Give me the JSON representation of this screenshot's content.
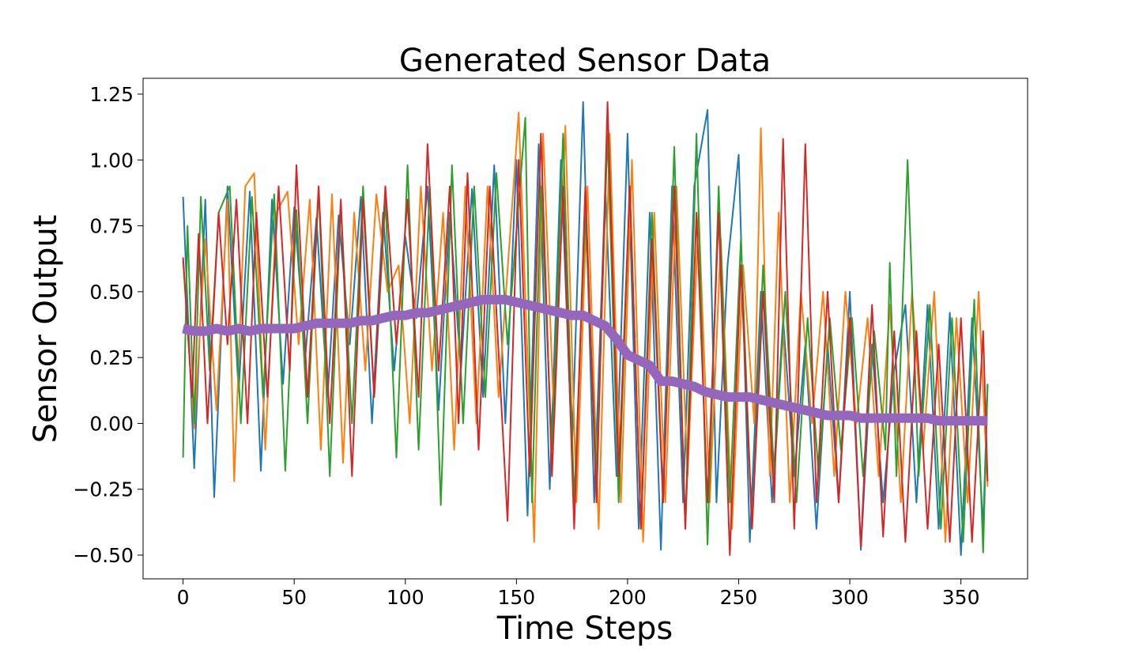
{
  "chart_data": {
    "type": "line",
    "title": "Generated Sensor Data",
    "xlabel": "Time Steps",
    "ylabel": "Sensor Output",
    "xlim": [
      -18,
      380
    ],
    "ylim": [
      -0.59,
      1.31
    ],
    "xticks": [
      0,
      50,
      100,
      150,
      200,
      250,
      300,
      350
    ],
    "xtick_labels": [
      "0",
      "50",
      "100",
      "150",
      "200",
      "250",
      "300",
      "350"
    ],
    "yticks": [
      -0.5,
      -0.25,
      0.0,
      0.25,
      0.5,
      0.75,
      1.0,
      1.25
    ],
    "ytick_labels": [
      "−0.50",
      "−0.25",
      "0.00",
      "0.25",
      "0.50",
      "0.75",
      "1.00",
      "1.25"
    ],
    "grid": false,
    "legend": "none",
    "series": [
      {
        "color": "#1f77b4",
        "x": [
          0,
          5,
          10,
          14,
          20,
          25,
          30,
          35,
          40,
          45,
          50,
          55,
          60,
          65,
          70,
          75,
          80,
          85,
          90,
          95,
          100,
          105,
          110,
          115,
          120,
          125,
          130,
          135,
          140,
          145,
          150,
          155,
          160,
          165,
          170,
          175,
          180,
          185,
          190,
          195,
          200,
          205,
          210,
          215,
          220,
          225,
          230,
          236,
          240,
          245,
          250,
          255,
          260,
          265,
          270,
          275,
          280,
          285,
          290,
          295,
          300,
          305,
          310,
          315,
          320,
          325,
          330,
          335,
          340,
          345,
          350,
          355,
          360,
          362
        ],
        "y": [
          0.86,
          -0.17,
          0.85,
          -0.28,
          0.9,
          0.12,
          0.88,
          -0.18,
          0.85,
          0.15,
          0.82,
          0.25,
          0.78,
          0.1,
          0.79,
          0.3,
          0.86,
          0.0,
          0.8,
          0.2,
          0.71,
          0.4,
          0.9,
          0.05,
          0.8,
          0.2,
          0.89,
          0.1,
          0.98,
          0.0,
          1.0,
          -0.35,
          1.06,
          -0.25,
          1.0,
          -0.1,
          1.22,
          -0.3,
          0.9,
          -0.2,
          1.1,
          -0.4,
          0.8,
          -0.48,
          0.9,
          -0.3,
          0.9,
          1.19,
          -0.3,
          0.6,
          1.02,
          -0.45,
          0.5,
          -0.3,
          0.4,
          -0.2,
          0.3,
          -0.4,
          0.3,
          -0.3,
          0.5,
          -0.48,
          0.3,
          -0.3,
          0.2,
          0.45,
          -0.3,
          0.45,
          -0.4,
          0.42,
          -0.5,
          0.4,
          -0.4,
          0.15
        ]
      },
      {
        "color": "#ff7f0e",
        "x": [
          0,
          5,
          10,
          15,
          20,
          23,
          28,
          32,
          37,
          42,
          47,
          52,
          57,
          62,
          67,
          72,
          77,
          82,
          87,
          92,
          97,
          102,
          107,
          112,
          117,
          122,
          127,
          132,
          137,
          142,
          151,
          158,
          162,
          167,
          172,
          177,
          182,
          187,
          192,
          197,
          202,
          207,
          212,
          217,
          222,
          227,
          232,
          237,
          242,
          247,
          252,
          257,
          260,
          264,
          268,
          273,
          278,
          283,
          288,
          293,
          298,
          303,
          308,
          313,
          318,
          323,
          328,
          333,
          338,
          343,
          348,
          353,
          358,
          362
        ],
        "y": [
          0.62,
          -0.02,
          0.7,
          0.05,
          0.85,
          -0.22,
          0.9,
          0.95,
          -0.1,
          0.8,
          0.88,
          0.3,
          0.85,
          -0.1,
          0.87,
          -0.15,
          0.8,
          0.2,
          0.87,
          0.5,
          0.6,
          0.0,
          0.9,
          0.2,
          0.8,
          -0.1,
          0.9,
          0.0,
          0.9,
          0.1,
          1.18,
          -0.45,
          1.1,
          0.0,
          1.13,
          -0.3,
          0.9,
          -0.4,
          1.1,
          -0.3,
          1.0,
          -0.45,
          0.8,
          -0.3,
          0.9,
          -0.2,
          0.8,
          -0.3,
          0.7,
          -0.4,
          0.6,
          0.0,
          1.12,
          -0.2,
          0.8,
          -0.3,
          0.5,
          0.0,
          0.5,
          -0.2,
          0.5,
          0.0,
          0.4,
          -0.2,
          0.45,
          -0.3,
          0.5,
          -0.1,
          0.5,
          -0.45,
          0.4,
          -0.3,
          0.5,
          -0.24
        ]
      },
      {
        "color": "#2ca02c",
        "x": [
          0,
          2,
          5,
          8,
          12,
          16,
          21,
          26,
          31,
          36,
          41,
          46,
          51,
          56,
          61,
          66,
          71,
          76,
          81,
          86,
          91,
          96,
          101,
          106,
          111,
          116,
          121,
          126,
          131,
          136,
          141,
          146,
          154,
          157,
          161,
          166,
          171,
          176,
          181,
          186,
          191,
          196,
          201,
          206,
          211,
          216,
          221,
          226,
          231,
          236,
          241,
          246,
          251,
          256,
          261,
          266,
          271,
          276,
          281,
          286,
          291,
          296,
          301,
          306,
          311,
          316,
          318,
          321,
          326,
          331,
          336,
          341,
          346,
          351,
          356,
          360,
          362
        ],
        "y": [
          -0.13,
          0.75,
          0.0,
          0.86,
          0.2,
          0.8,
          0.9,
          0.0,
          0.86,
          0.1,
          0.87,
          -0.18,
          0.81,
          0.0,
          0.89,
          -0.2,
          0.83,
          0.0,
          0.9,
          0.1,
          0.85,
          -0.13,
          0.98,
          -0.1,
          0.9,
          -0.31,
          0.98,
          0.0,
          0.9,
          0.1,
          0.95,
          0.3,
          1.16,
          -0.3,
          0.9,
          -0.1,
          1.1,
          -0.3,
          0.8,
          -0.2,
          1.1,
          -0.3,
          0.9,
          -0.4,
          0.8,
          -0.3,
          1.05,
          -0.4,
          1.1,
          -0.46,
          0.9,
          -0.3,
          0.7,
          -0.4,
          0.6,
          -0.2,
          0.5,
          -0.3,
          0.4,
          -0.2,
          0.4,
          -0.1,
          0.4,
          -0.2,
          0.35,
          -0.1,
          0.61,
          -0.2,
          1.0,
          -0.2,
          0.45,
          -0.4,
          0.4,
          -0.45,
          0.47,
          -0.49,
          0.15
        ]
      },
      {
        "color": "#d62728",
        "x": [
          0,
          4,
          7,
          11,
          16,
          20,
          24,
          29,
          33,
          38,
          43,
          48,
          51,
          56,
          61,
          66,
          71,
          76,
          81,
          86,
          91,
          96,
          101,
          106,
          110,
          115,
          120,
          124,
          128,
          133,
          138,
          146,
          151,
          156,
          161,
          166,
          171,
          176,
          181,
          186,
          191,
          196,
          201,
          206,
          211,
          216,
          221,
          226,
          231,
          236,
          241,
          246,
          251,
          256,
          261,
          266,
          270,
          275,
          280,
          285,
          290,
          295,
          300,
          305,
          310,
          315,
          320,
          325,
          330,
          335,
          340,
          345,
          350,
          355,
          360,
          362
        ],
        "y": [
          0.63,
          0.1,
          0.72,
          0.0,
          0.8,
          0.3,
          0.85,
          0.0,
          0.8,
          0.1,
          0.9,
          0.2,
          0.98,
          0.1,
          0.9,
          0.0,
          0.85,
          -0.2,
          0.85,
          0.1,
          0.9,
          0.3,
          0.85,
          0.1,
          1.06,
          0.2,
          0.9,
          0.0,
          0.95,
          -0.1,
          0.9,
          -0.37,
          1.0,
          -0.2,
          1.1,
          -0.2,
          0.9,
          -0.4,
          0.9,
          -0.3,
          1.22,
          -0.2,
          0.9,
          -0.4,
          0.7,
          -0.3,
          0.9,
          -0.4,
          0.8,
          -0.3,
          0.8,
          -0.5,
          0.6,
          -0.4,
          0.5,
          -0.3,
          1.08,
          -0.4,
          1.06,
          -0.3,
          0.5,
          -0.3,
          0.4,
          -0.47,
          0.45,
          -0.43,
          0.35,
          -0.45,
          0.35,
          -0.4,
          0.3,
          -0.45,
          0.4,
          -0.45,
          0.35,
          -0.22
        ]
      },
      {
        "color": "#9467bd",
        "x": [
          0,
          5,
          10,
          15,
          20,
          25,
          30,
          35,
          40,
          45,
          50,
          55,
          60,
          65,
          70,
          75,
          80,
          85,
          90,
          95,
          100,
          105,
          110,
          115,
          120,
          125,
          130,
          135,
          140,
          145,
          150,
          155,
          160,
          165,
          170,
          175,
          180,
          185,
          190,
          195,
          200,
          205,
          210,
          215,
          220,
          225,
          230,
          235,
          240,
          245,
          250,
          255,
          260,
          265,
          270,
          275,
          280,
          285,
          290,
          295,
          300,
          305,
          310,
          315,
          320,
          325,
          330,
          335,
          340,
          345,
          350,
          355,
          360,
          362
        ],
        "y": [
          0.36,
          0.35,
          0.35,
          0.36,
          0.35,
          0.36,
          0.35,
          0.36,
          0.36,
          0.36,
          0.36,
          0.37,
          0.38,
          0.38,
          0.38,
          0.38,
          0.39,
          0.39,
          0.4,
          0.41,
          0.41,
          0.42,
          0.42,
          0.43,
          0.44,
          0.45,
          0.46,
          0.47,
          0.47,
          0.47,
          0.46,
          0.45,
          0.44,
          0.43,
          0.42,
          0.41,
          0.41,
          0.39,
          0.37,
          0.32,
          0.26,
          0.24,
          0.22,
          0.16,
          0.16,
          0.15,
          0.14,
          0.12,
          0.11,
          0.1,
          0.1,
          0.1,
          0.09,
          0.08,
          0.07,
          0.06,
          0.05,
          0.04,
          0.03,
          0.03,
          0.03,
          0.02,
          0.02,
          0.02,
          0.02,
          0.02,
          0.02,
          0.02,
          0.01,
          0.01,
          0.01,
          0.01,
          0.01,
          0.01
        ]
      }
    ]
  }
}
